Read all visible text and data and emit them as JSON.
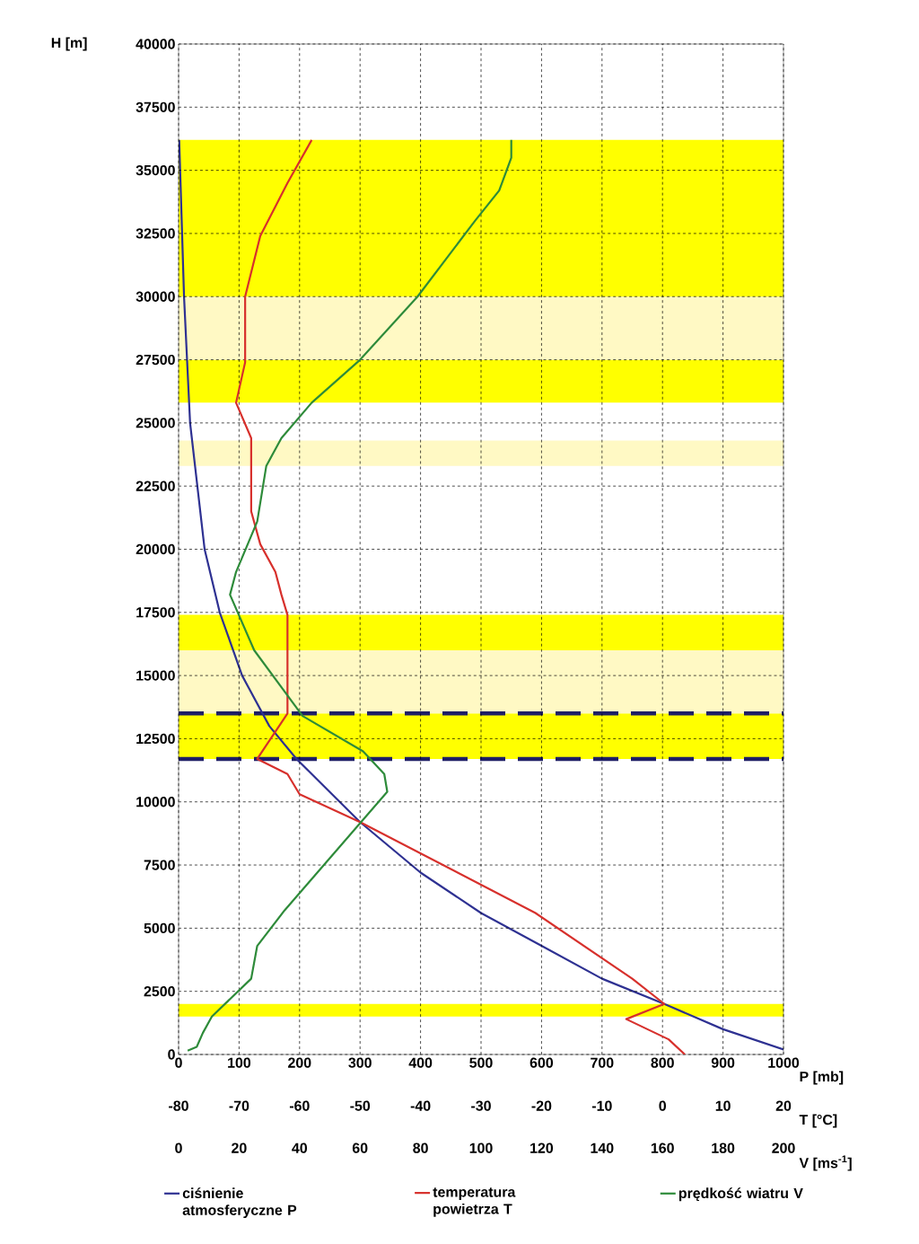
{
  "chart_data": [
    {
      "type": "line",
      "ylabel": "H [m]",
      "xlabel": "P [mb]",
      "ylim": [
        0,
        40000
      ],
      "yticks": [
        0,
        2500,
        5000,
        7500,
        10000,
        12500,
        15000,
        17500,
        20000,
        22500,
        25000,
        27500,
        30000,
        32500,
        35000,
        37500,
        40000
      ],
      "xlim": [
        0,
        1000
      ],
      "xticks": [
        0,
        100,
        200,
        300,
        400,
        500,
        600,
        700,
        800,
        900,
        1000
      ],
      "grid": true,
      "legend": "bottom",
      "bands": [
        {
          "axis": "y",
          "from": 25800,
          "to": 27500,
          "color": "#ffff00"
        },
        {
          "axis": "y",
          "from": 27500,
          "to": 30000,
          "color": "#fff9c4"
        },
        {
          "axis": "y",
          "from": 30000,
          "to": 36200,
          "color": "#ffff00"
        },
        {
          "axis": "y",
          "from": 23300,
          "to": 24300,
          "color": "#fff9c4"
        },
        {
          "axis": "y",
          "from": 11700,
          "to": 13500,
          "color": "#ffff00"
        },
        {
          "axis": "y",
          "from": 13500,
          "to": 16000,
          "color": "#fff9c4"
        },
        {
          "axis": "y",
          "from": 16000,
          "to": 17400,
          "color": "#ffff00"
        },
        {
          "axis": "y",
          "from": 1500,
          "to": 2000,
          "color": "#ffff00"
        }
      ],
      "ref_lines": [
        {
          "axis": "y",
          "value": 13500,
          "color": "#1f1f66",
          "line_style": "dashed"
        },
        {
          "axis": "y",
          "value": 11700,
          "color": "#1f1f66",
          "line_style": "dashed"
        }
      ],
      "series": [
        {
          "name": "ciśnienie atmosferyczne P",
          "color": "#2e3192",
          "x": [
            1000,
            900,
            803,
            700,
            600,
            500,
            400,
            300,
            195,
            150,
            105,
            68,
            43,
            19,
            9,
            1
          ],
          "values": [
            200,
            1000,
            2000,
            3000,
            4300,
            5600,
            7200,
            9200,
            11700,
            13000,
            15000,
            17500,
            20000,
            25000,
            30000,
            36200
          ]
        }
      ]
    },
    {
      "type": "line",
      "xlabel": "T [°C]",
      "ylim": [
        0,
        40000
      ],
      "xlim": [
        -80,
        20
      ],
      "xticks": [
        -80,
        -70,
        -60,
        -50,
        -40,
        -30,
        -20,
        -10,
        0,
        10,
        20
      ],
      "tick_labels": "x",
      "legend": "bottom",
      "series": [
        {
          "name": "temperatura powietrza T",
          "color": "#d7302c",
          "x": [
            3.7,
            1,
            -6,
            0.3,
            -5,
            -21,
            -50,
            -60,
            -62,
            -67,
            -62,
            -62,
            -63,
            -64,
            -66.5,
            -68,
            -68,
            -70.5,
            -69,
            -69,
            -66.5,
            -62,
            -58
          ],
          "values": [
            0,
            600,
            1400,
            2000,
            3000,
            5600,
            9200,
            10300,
            11100,
            11700,
            13500,
            17400,
            18200,
            19100,
            20200,
            21500,
            24400,
            25800,
            27400,
            30000,
            32400,
            34500,
            36200
          ]
        }
      ]
    },
    {
      "type": "line",
      "xlabel": "V [ms$^{-1}$]",
      "ylim": [
        0,
        40000
      ],
      "xlim": [
        0,
        200
      ],
      "xticks": [
        0,
        20,
        40,
        60,
        80,
        100,
        120,
        140,
        160,
        180,
        200
      ],
      "tick_labels": "x",
      "legend": "bottom",
      "series": [
        {
          "name": "prędkość wiatru V",
          "color": "#2e8b3a",
          "x": [
            3,
            6,
            8,
            11,
            24,
            26,
            35,
            69,
            68,
            61,
            41,
            25,
            17,
            19,
            26,
            29,
            34,
            44,
            60,
            79,
            98,
            106,
            110,
            110
          ],
          "values": [
            150,
            300,
            850,
            1500,
            3000,
            4300,
            5700,
            10400,
            11100,
            12000,
            13400,
            16000,
            18200,
            19100,
            21100,
            23300,
            24400,
            25800,
            27500,
            30000,
            33000,
            34200,
            35500,
            36200
          ]
        }
      ]
    }
  ]
}
